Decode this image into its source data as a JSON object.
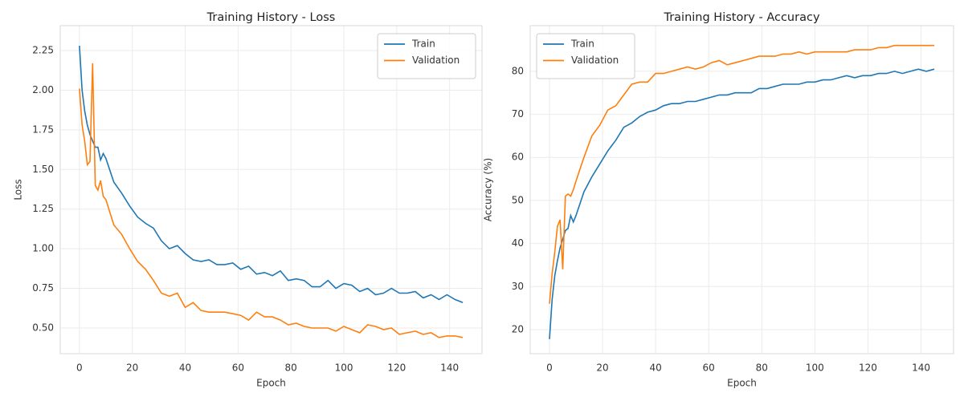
{
  "chart_data": [
    {
      "type": "line",
      "title": "Training History - Loss",
      "xlabel": "Epoch",
      "ylabel": "Loss",
      "x": [
        0,
        1,
        2,
        3,
        4,
        5,
        6,
        7,
        8,
        9,
        10,
        13,
        16,
        19,
        22,
        25,
        28,
        31,
        34,
        37,
        40,
        43,
        46,
        49,
        52,
        55,
        58,
        61,
        64,
        67,
        70,
        73,
        76,
        79,
        82,
        85,
        88,
        91,
        94,
        97,
        100,
        103,
        106,
        109,
        112,
        115,
        118,
        121,
        124,
        127,
        130,
        133,
        136,
        139,
        142,
        145
      ],
      "series": [
        {
          "name": "Train",
          "color": "#1f77b4",
          "values": [
            2.28,
            2.0,
            1.87,
            1.78,
            1.72,
            1.68,
            1.64,
            1.64,
            1.56,
            1.6,
            1.57,
            1.42,
            1.35,
            1.27,
            1.2,
            1.16,
            1.13,
            1.05,
            1.0,
            1.02,
            0.97,
            0.93,
            0.92,
            0.93,
            0.9,
            0.9,
            0.91,
            0.87,
            0.89,
            0.84,
            0.85,
            0.83,
            0.86,
            0.8,
            0.81,
            0.8,
            0.76,
            0.76,
            0.8,
            0.75,
            0.78,
            0.77,
            0.73,
            0.75,
            0.71,
            0.72,
            0.75,
            0.72,
            0.72,
            0.73,
            0.69,
            0.71,
            0.68,
            0.71,
            0.68,
            0.66
          ]
        },
        {
          "name": "Validation",
          "color": "#ff7f0e",
          "values": [
            2.01,
            1.78,
            1.68,
            1.53,
            1.55,
            2.17,
            1.4,
            1.37,
            1.43,
            1.33,
            1.31,
            1.15,
            1.09,
            1.0,
            0.92,
            0.87,
            0.8,
            0.72,
            0.7,
            0.72,
            0.63,
            0.66,
            0.61,
            0.6,
            0.6,
            0.6,
            0.59,
            0.58,
            0.55,
            0.6,
            0.57,
            0.57,
            0.55,
            0.52,
            0.53,
            0.51,
            0.5,
            0.5,
            0.5,
            0.48,
            0.51,
            0.49,
            0.47,
            0.52,
            0.51,
            0.49,
            0.5,
            0.46,
            0.47,
            0.48,
            0.46,
            0.47,
            0.44,
            0.45,
            0.45,
            0.44
          ]
        }
      ],
      "xlim": [
        -7.25,
        152.25
      ],
      "xticks": [
        0,
        20,
        40,
        60,
        80,
        100,
        120,
        140
      ],
      "ylim": [
        0.338,
        2.407
      ],
      "yticks": [
        {
          "value": 0.5,
          "label": "0.50"
        },
        {
          "value": 0.75,
          "label": "0.75"
        },
        {
          "value": 1.0,
          "label": "1.00"
        },
        {
          "value": 1.25,
          "label": "1.25"
        },
        {
          "value": 1.5,
          "label": "1.50"
        },
        {
          "value": 1.75,
          "label": "1.75"
        },
        {
          "value": 2.0,
          "label": "2.00"
        },
        {
          "value": 2.25,
          "label": "2.25"
        }
      ],
      "grid": true,
      "legend": "upper right"
    },
    {
      "type": "line",
      "title": "Training History - Accuracy",
      "xlabel": "Epoch",
      "ylabel": "Accuracy (%)",
      "x": [
        0,
        1,
        2,
        3,
        4,
        5,
        6,
        7,
        8,
        9,
        10,
        13,
        16,
        19,
        22,
        25,
        28,
        31,
        34,
        37,
        40,
        43,
        46,
        49,
        52,
        55,
        58,
        61,
        64,
        67,
        70,
        73,
        76,
        79,
        82,
        85,
        88,
        91,
        94,
        97,
        100,
        103,
        106,
        109,
        112,
        115,
        118,
        121,
        124,
        127,
        130,
        133,
        136,
        139,
        142,
        145
      ],
      "series": [
        {
          "name": "Train",
          "color": "#1f77b4",
          "values": [
            17.8,
            27,
            32.5,
            36,
            39,
            41,
            43,
            43.5,
            46.5,
            45,
            46.5,
            52,
            55.5,
            58.5,
            61.5,
            64,
            67,
            68,
            69.5,
            70.5,
            71,
            72,
            72.5,
            72.5,
            73,
            73,
            73.5,
            74,
            74.5,
            74.5,
            75,
            75,
            75,
            76,
            76,
            76.5,
            77,
            77,
            77,
            77.5,
            77.5,
            78,
            78,
            78.5,
            79,
            78.5,
            79,
            79,
            79.5,
            79.5,
            80,
            79.5,
            80,
            80.5,
            80,
            80.5
          ]
        },
        {
          "name": "Validation",
          "color": "#ff7f0e",
          "values": [
            26,
            33,
            38,
            44,
            45.5,
            34,
            51,
            51.5,
            51,
            52.5,
            54.5,
            60,
            65,
            67.5,
            71,
            72,
            74.5,
            77,
            77.5,
            77.5,
            79.5,
            79.5,
            80,
            80.5,
            81,
            80.5,
            81,
            82,
            82.5,
            81.5,
            82,
            82.5,
            83,
            83.5,
            83.5,
            83.5,
            84,
            84,
            84.5,
            84,
            84.5,
            84.5,
            84.5,
            84.5,
            84.5,
            85,
            85,
            85,
            85.5,
            85.5,
            86,
            86,
            86,
            86,
            86,
            86
          ]
        }
      ],
      "xlim": [
        -7.25,
        152.25
      ],
      "xticks": [
        0,
        20,
        40,
        60,
        80,
        100,
        120,
        140
      ],
      "ylim": [
        14.4,
        90.6
      ],
      "yticks": [
        20,
        30,
        40,
        50,
        60,
        70,
        80
      ],
      "grid": true,
      "legend": "upper left"
    }
  ]
}
